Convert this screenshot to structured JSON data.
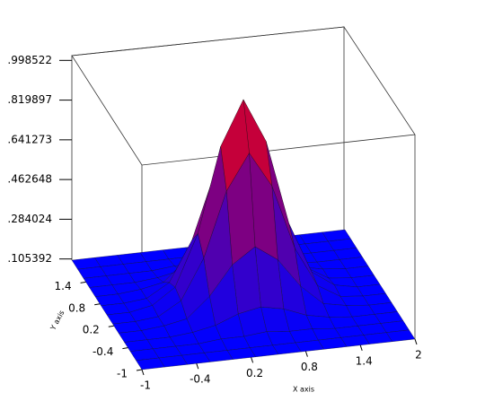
{
  "chart_data": {
    "type": "surface",
    "x": [
      -1,
      -0.75,
      -0.5,
      -0.25,
      0,
      0.25,
      0.5,
      0.75,
      1,
      1.25,
      1.5,
      1.75,
      2
    ],
    "y": [
      -1,
      -0.75,
      -0.5,
      -0.25,
      0,
      0.25,
      0.5,
      0.75,
      1,
      1.25,
      1.5,
      1.75,
      2
    ],
    "z": [
      [
        0.1,
        0.1,
        0.1,
        0.1,
        0.1,
        0.1,
        0.1,
        0.1,
        0.1,
        0.1,
        0.1,
        0.1,
        0.1
      ],
      [
        0.1,
        0.1,
        0.1,
        0.1,
        0.1,
        0.1,
        0.1,
        0.1,
        0.1,
        0.1,
        0.1,
        0.1,
        0.1
      ],
      [
        0.1,
        0.1,
        0.1,
        0.1,
        0.11,
        0.11,
        0.12,
        0.11,
        0.11,
        0.1,
        0.1,
        0.1,
        0.1
      ],
      [
        0.1,
        0.1,
        0.1,
        0.11,
        0.13,
        0.17,
        0.19,
        0.17,
        0.13,
        0.11,
        0.1,
        0.1,
        0.1
      ],
      [
        0.1,
        0.1,
        0.11,
        0.13,
        0.22,
        0.35,
        0.42,
        0.35,
        0.22,
        0.13,
        0.11,
        0.1,
        0.1
      ],
      [
        0.1,
        0.1,
        0.11,
        0.17,
        0.35,
        0.64,
        0.8,
        0.64,
        0.35,
        0.17,
        0.11,
        0.1,
        0.1
      ],
      [
        0.1,
        0.1,
        0.12,
        0.19,
        0.42,
        0.8,
        1.0,
        0.8,
        0.42,
        0.19,
        0.12,
        0.1,
        0.1
      ],
      [
        0.1,
        0.1,
        0.11,
        0.17,
        0.35,
        0.64,
        0.8,
        0.64,
        0.35,
        0.17,
        0.11,
        0.1,
        0.1
      ],
      [
        0.1,
        0.1,
        0.11,
        0.13,
        0.22,
        0.35,
        0.42,
        0.35,
        0.22,
        0.13,
        0.11,
        0.1,
        0.1
      ],
      [
        0.1,
        0.1,
        0.1,
        0.11,
        0.13,
        0.17,
        0.19,
        0.17,
        0.13,
        0.11,
        0.1,
        0.1,
        0.1
      ],
      [
        0.1,
        0.1,
        0.1,
        0.1,
        0.11,
        0.11,
        0.12,
        0.11,
        0.11,
        0.1,
        0.1,
        0.1,
        0.1
      ],
      [
        0.1,
        0.1,
        0.1,
        0.1,
        0.1,
        0.1,
        0.1,
        0.1,
        0.1,
        0.1,
        0.1,
        0.1,
        0.1
      ],
      [
        0.1,
        0.1,
        0.1,
        0.1,
        0.1,
        0.1,
        0.1,
        0.1,
        0.1,
        0.1,
        0.1,
        0.1,
        0.1
      ]
    ],
    "xlim": [
      -1,
      2
    ],
    "ylim": [
      -1,
      2
    ],
    "zlim": [
      0.1,
      1.02
    ],
    "xticks": [
      -1,
      -0.4,
      0.2,
      0.8,
      1.4,
      2
    ],
    "yticks": [
      -1,
      -0.4,
      0.2,
      0.8,
      1.4
    ],
    "zticks": [
      {
        "value": 0.105392,
        "label": ".105392"
      },
      {
        "value": 0.284024,
        "label": ".284024"
      },
      {
        "value": 0.462648,
        "label": ".462648"
      },
      {
        "value": 0.641273,
        "label": ".641273"
      },
      {
        "value": 0.819897,
        "label": ".819897"
      },
      {
        "value": 0.998522,
        "label": ".998522"
      }
    ],
    "xlabel": "X axis",
    "ylabel": "Y axis",
    "colormap": [
      "#0000ff",
      "#ff0000"
    ]
  }
}
